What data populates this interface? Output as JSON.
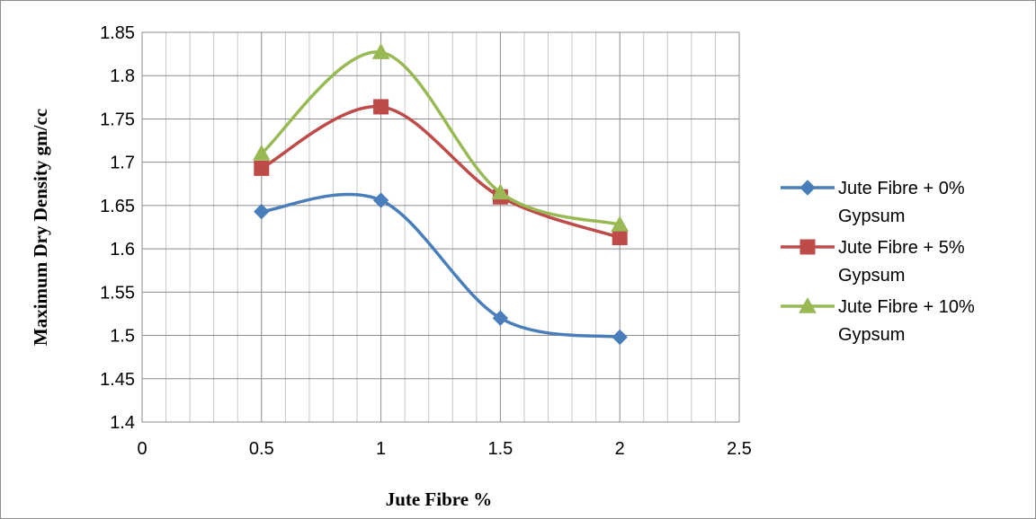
{
  "chart_data": {
    "type": "line",
    "title": "",
    "xlabel": "Jute Fibre %",
    "ylabel": "Maximum Dry Density gm/cc",
    "xlim": [
      0,
      2.5
    ],
    "ylim": [
      1.4,
      1.85
    ],
    "xticks": [
      "0",
      "0.5",
      "1",
      "1.5",
      "2",
      "2.5"
    ],
    "yticks": [
      "1.4",
      "1.45",
      "1.5",
      "1.55",
      "1.6",
      "1.65",
      "1.7",
      "1.75",
      "1.8",
      "1.85"
    ],
    "grid": true,
    "legend_position": "right",
    "x": [
      0.5,
      1,
      1.5,
      2
    ],
    "series": [
      {
        "name_lines": [
          "Jute Fibre + 0%",
          "Gypsum"
        ],
        "values": [
          1.643,
          1.656,
          1.52,
          1.498
        ],
        "color": "#4a7ebb",
        "marker": "diamond"
      },
      {
        "name_lines": [
          "Jute Fibre + 5%",
          "Gypsum"
        ],
        "values": [
          1.693,
          1.764,
          1.66,
          1.613
        ],
        "color": "#be4b48",
        "marker": "square"
      },
      {
        "name_lines": [
          "Jute Fibre + 10%",
          "Gypsum"
        ],
        "values": [
          1.71,
          1.827,
          1.665,
          1.628
        ],
        "color": "#98b954",
        "marker": "triangle"
      }
    ]
  }
}
